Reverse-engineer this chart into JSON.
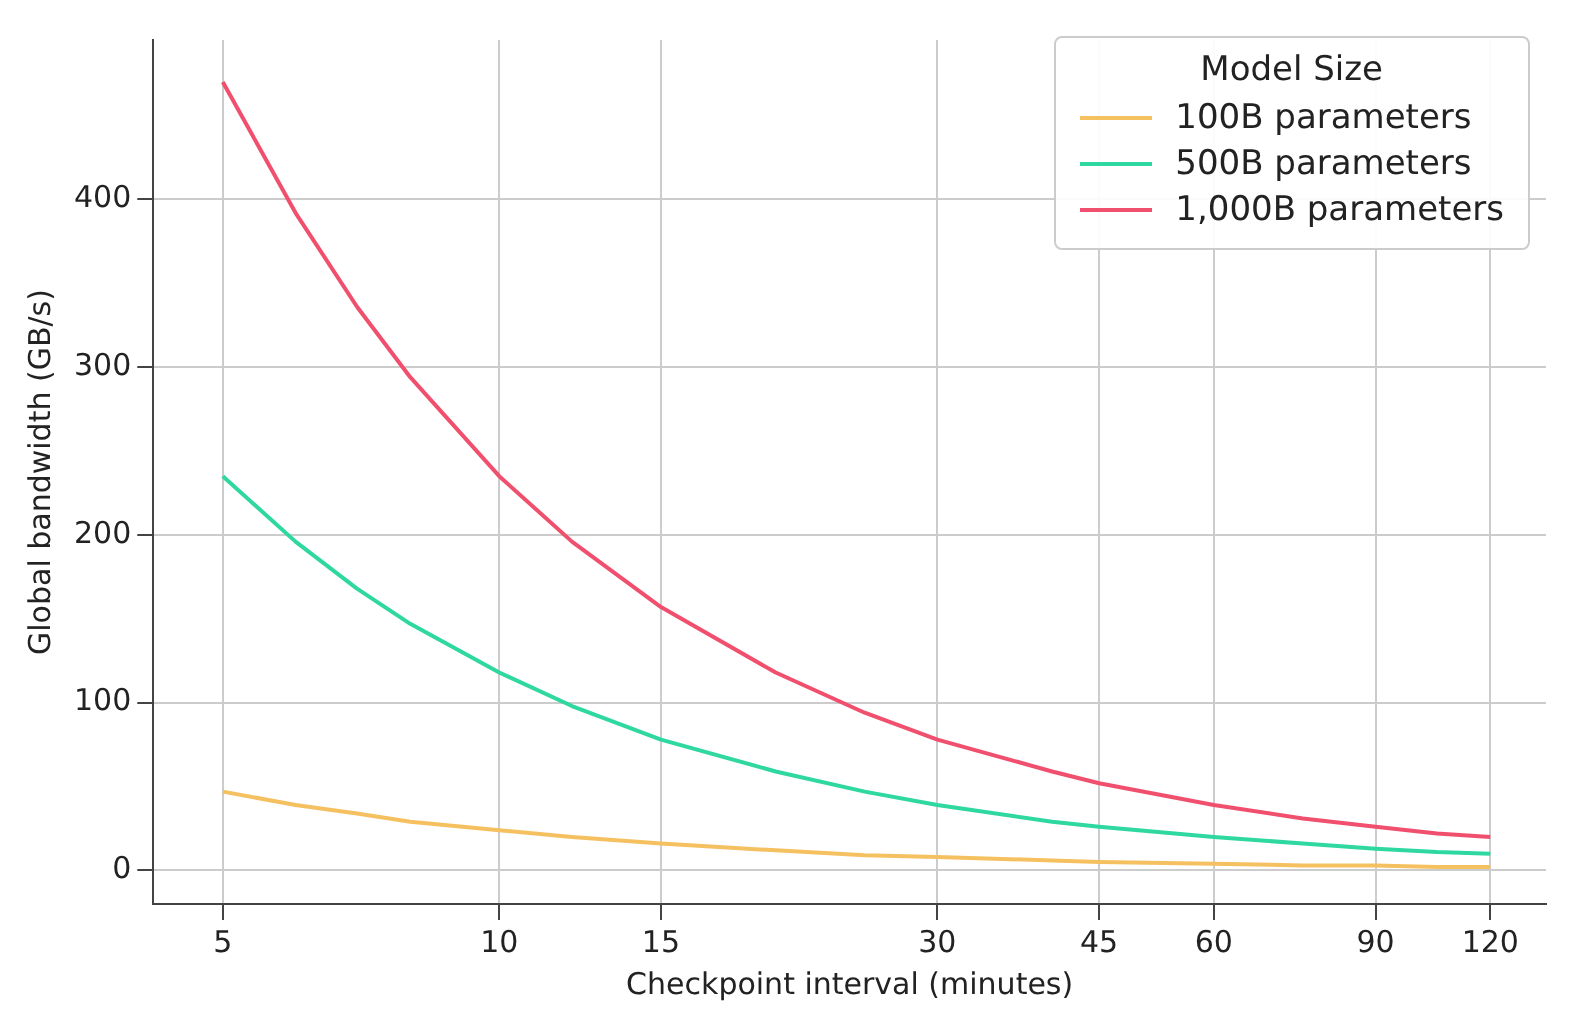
{
  "chart_data": {
    "type": "line",
    "xlabel": "Checkpoint interval (minutes)",
    "ylabel": "Global bandwidth (GB/s)",
    "legend_title": "Model Size",
    "x": [
      5,
      6,
      7,
      8,
      10,
      12,
      15,
      20,
      25,
      30,
      40,
      45,
      60,
      75,
      90,
      105,
      120
    ],
    "series": [
      {
        "name": "100B parameters",
        "color": "#f5c060",
        "values": [
          47,
          39,
          34,
          29,
          24,
          20,
          16,
          12,
          9,
          8,
          6,
          5,
          4,
          3,
          3,
          2,
          2
        ]
      },
      {
        "name": "500B parameters",
        "color": "#2ed8a0",
        "values": [
          235,
          196,
          168,
          147,
          118,
          98,
          78,
          59,
          47,
          39,
          29,
          26,
          20,
          16,
          13,
          11,
          10
        ]
      },
      {
        "name": "1,000B parameters",
        "color": "#f0506e",
        "values": [
          470,
          392,
          336,
          294,
          235,
          196,
          157,
          118,
          94,
          78,
          59,
          52,
          39,
          31,
          26,
          22,
          20
        ]
      }
    ],
    "log": "x",
    "xlim": [
      4.2,
      138
    ],
    "xticks": [
      5,
      10,
      15,
      30,
      45,
      60,
      90,
      120
    ],
    "ylim": [
      -20,
      495
    ],
    "yticks": [
      0,
      100,
      200,
      300,
      400
    ],
    "grid": true,
    "legend": "top right",
    "marker": "none",
    "line_style": "solid"
  }
}
